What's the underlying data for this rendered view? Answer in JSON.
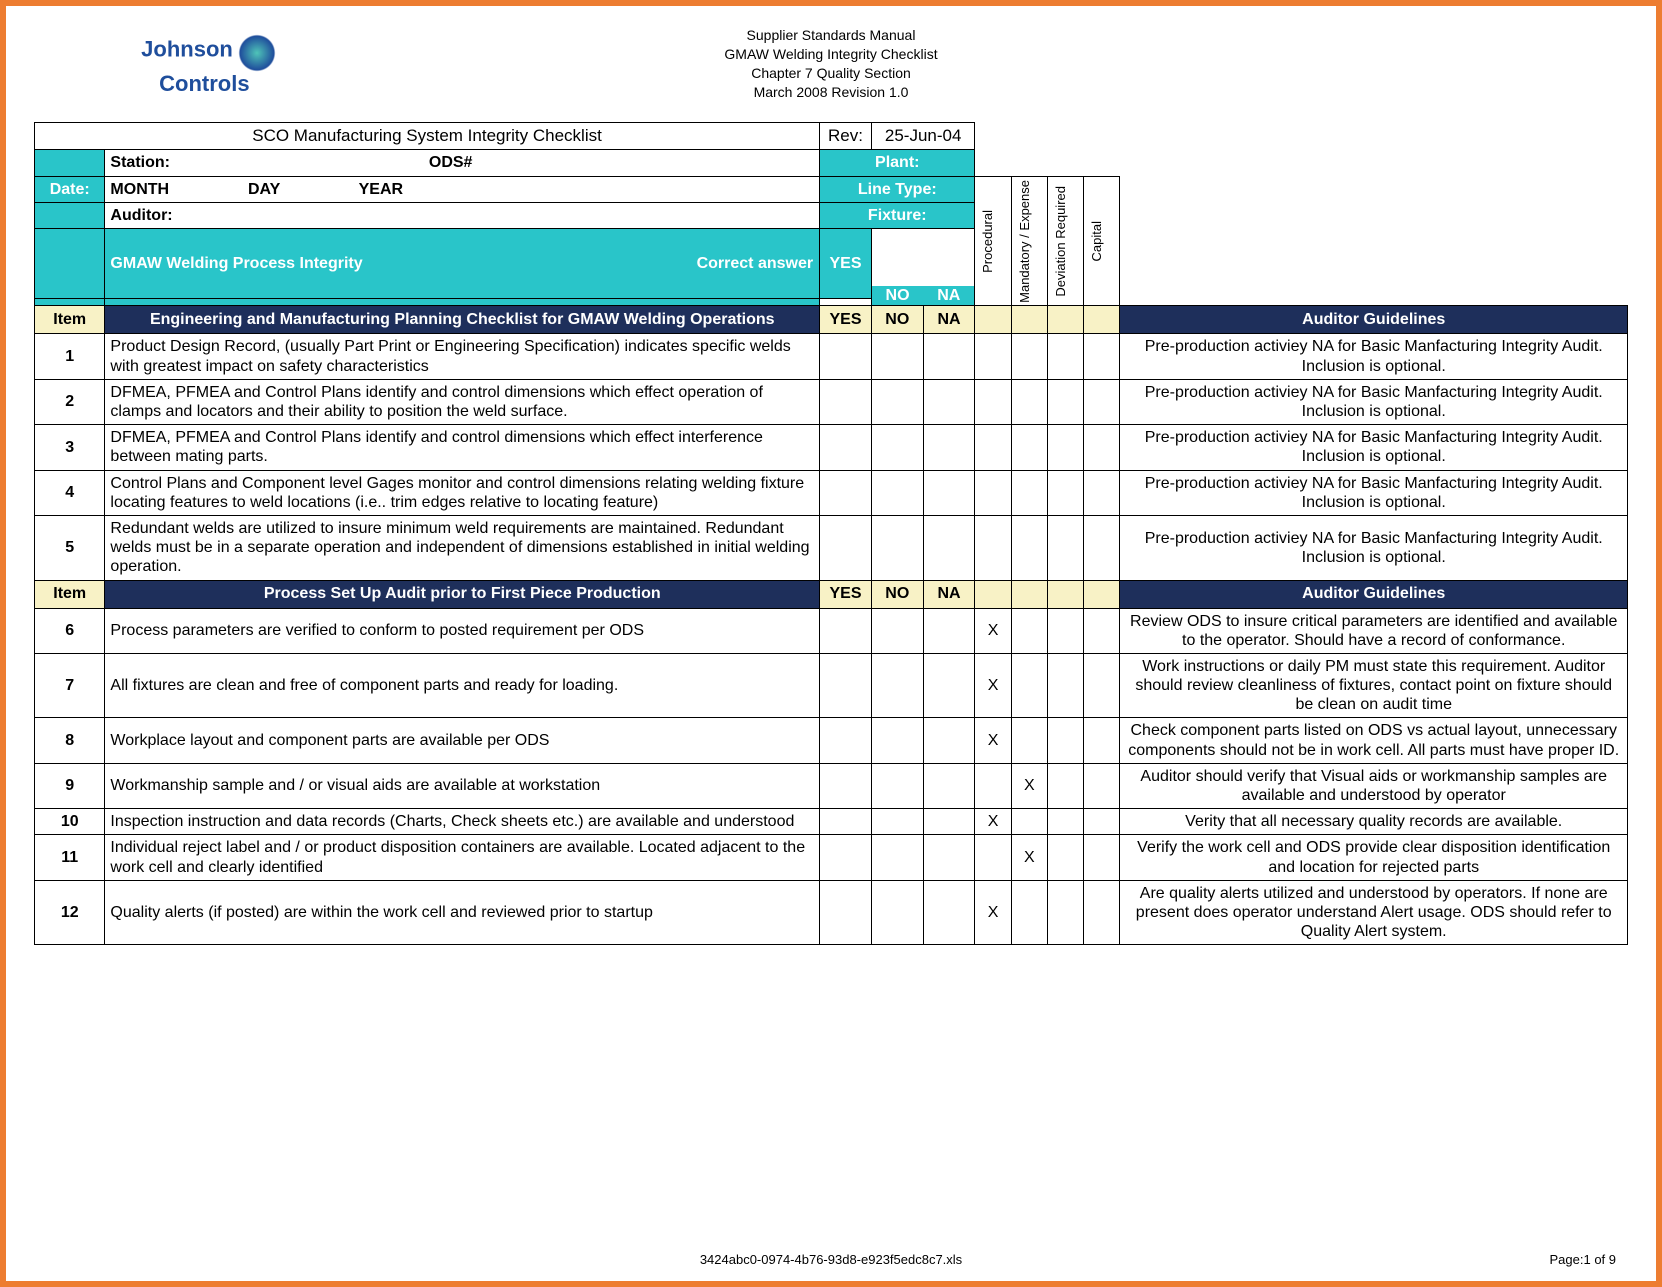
{
  "colors": {
    "frame": "#ed7d31",
    "teal": "#29c5c9",
    "navy": "#1e2f5b",
    "cream": "#f8f2c6",
    "grey": "#f2f2f2"
  },
  "header": {
    "logo_line1": "Johnson",
    "logo_line2": "Controls",
    "lines": [
      "Supplier Standards Manual",
      "GMAW Welding Integrity Checklist",
      "Chapter 7 Quality Section",
      "March 2008 Revision 1.0"
    ]
  },
  "form": {
    "title": "SCO Manufacturing System Integrity Checklist",
    "rev_label": "Rev:",
    "rev_value": "25-Jun-04",
    "station_label": "Station:",
    "ods_label": "ODS#",
    "plant_label": "Plant:",
    "date_label": "Date:",
    "month": "MONTH",
    "day": "DAY",
    "year": "YEAR",
    "linetype_label": "Line Type:",
    "auditor_label": "Auditor:",
    "fixture_label": "Fixture:",
    "process_title": "GMAW Welding Process Integrity",
    "correct_answer_label": "Correct answer",
    "yes": "YES",
    "no": "NO",
    "na": "NA",
    "item_label": "Item",
    "rotated_headers": [
      "Procedural",
      "Mandatory / Expense",
      "Deviation Required",
      "Capital"
    ]
  },
  "sections": [
    {
      "title": "Engineering and Manufacturing Planning Checklist for GMAW Welding Operations",
      "guide_header": "Auditor Guidelines",
      "rows": [
        {
          "n": "1",
          "desc": "Product Design Record, (usually Part Print or Engineering Specification) indicates specific welds with greatest impact on safety characteristics",
          "c": [
            "",
            "",
            "",
            ""
          ],
          "g": "Pre-production activiey NA for Basic Manfacturing Integrity Audit. Inclusion is optional."
        },
        {
          "n": "2",
          "desc": "DFMEA, PFMEA and Control Plans identify and control dimensions which effect operation of clamps and locators and their ability to position the weld surface.",
          "c": [
            "",
            "",
            "",
            ""
          ],
          "g": "Pre-production activiey NA for Basic Manfacturing Integrity Audit. Inclusion is optional."
        },
        {
          "n": "3",
          "desc": "DFMEA, PFMEA and Control Plans identify and control dimensions which effect interference between mating parts.",
          "c": [
            "",
            "",
            "",
            ""
          ],
          "g": "Pre-production activiey NA for Basic Manfacturing Integrity Audit. Inclusion is optional."
        },
        {
          "n": "4",
          "desc": "Control Plans and Component level Gages monitor and control dimensions relating welding fixture locating features  to weld locations (i.e.. trim edges relative to locating feature)",
          "c": [
            "",
            "",
            "",
            ""
          ],
          "g": "Pre-production activiey NA for Basic Manfacturing Integrity Audit. Inclusion is optional."
        },
        {
          "n": "5",
          "desc": "Redundant welds are utilized to insure minimum weld requirements are maintained. Redundant welds must be in a separate operation and independent of dimensions established in initial welding operation.",
          "c": [
            "",
            "",
            "",
            ""
          ],
          "g": "Pre-production activiey NA for Basic Manfacturing Integrity Audit. Inclusion is optional."
        }
      ]
    },
    {
      "title": "Process Set Up Audit prior to First Piece Production",
      "guide_header": "Auditor Guidelines",
      "rows": [
        {
          "n": "6",
          "desc": "Process parameters are verified to conform to posted requirement per ODS",
          "c": [
            "X",
            "",
            "",
            ""
          ],
          "g": "Review ODS to insure critical parameters are identified and available to the operator. Should have a record of conformance."
        },
        {
          "n": "7",
          "desc": "All fixtures are clean and free of component parts and ready for loading.",
          "c": [
            "X",
            "",
            "",
            ""
          ],
          "g": "Work instructions or daily PM must state this requirement. Auditor should review cleanliness of fixtures, contact point on fixture should be clean on audit time"
        },
        {
          "n": "8",
          "desc": "Workplace layout and component parts are available per ODS",
          "c": [
            "X",
            "",
            "",
            ""
          ],
          "g": "Check component parts listed on ODS vs actual layout, unnecessary components should not be in work cell. All parts must have proper ID."
        },
        {
          "n": "9",
          "desc": "Workmanship sample and / or visual aids are available at workstation",
          "c": [
            "",
            "X",
            "",
            ""
          ],
          "g": "Auditor should verify that Visual aids or workmanship samples are available and understood by operator"
        },
        {
          "n": "10",
          "desc": "Inspection instruction and data records (Charts, Check sheets etc.) are available and understood",
          "c": [
            "X",
            "",
            "",
            ""
          ],
          "g": "Verity that all necessary quality records are available."
        },
        {
          "n": "11",
          "desc": "Individual reject label and / or product disposition containers are available. Located adjacent to the work cell and clearly identified",
          "c": [
            "",
            "X",
            "",
            ""
          ],
          "g": "Verify the work cell and ODS provide clear disposition identification and location for rejected parts"
        },
        {
          "n": "12",
          "desc": "Quality alerts (if posted) are within the work cell and reviewed prior to startup",
          "c": [
            "X",
            "",
            "",
            ""
          ],
          "g": "Are quality alerts utilized and understood by operators. If none are present does operator understand Alert usage. ODS should refer to Quality Alert system."
        }
      ]
    }
  ],
  "footer": {
    "filename": "3424abc0-0974-4b76-93d8-e923f5edc8c7.xls",
    "page": "Page:1 of 9"
  }
}
